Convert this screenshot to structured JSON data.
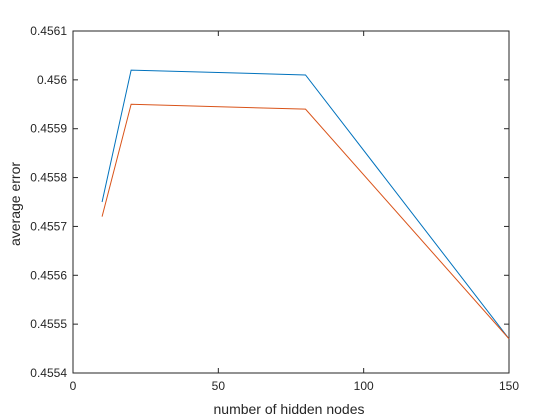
{
  "chart_data": {
    "type": "line",
    "title": "",
    "xlabel": "number of hidden nodes",
    "ylabel": "average error",
    "xlim": [
      0,
      150
    ],
    "ylim": [
      0.4554,
      0.4561
    ],
    "xticks": [
      0,
      50,
      100,
      150
    ],
    "xtick_labels": [
      "0",
      "50",
      "100",
      "150"
    ],
    "yticks": [
      0.4554,
      0.4555,
      0.4556,
      0.4557,
      0.4558,
      0.4559,
      0.456,
      0.4561
    ],
    "ytick_labels": [
      "0.4554",
      "0.4555",
      "0.4556",
      "0.4557",
      "0.4558",
      "0.4559",
      "0.456",
      "0.4561"
    ],
    "grid": false,
    "x": [
      10,
      20,
      80,
      150
    ],
    "series": [
      {
        "values": [
          0.45575,
          0.45602,
          0.45601,
          0.45547
        ],
        "color": "#0072BD"
      },
      {
        "values": [
          0.45572,
          0.45595,
          0.45594,
          0.45547
        ],
        "color": "#D95319"
      }
    ]
  }
}
